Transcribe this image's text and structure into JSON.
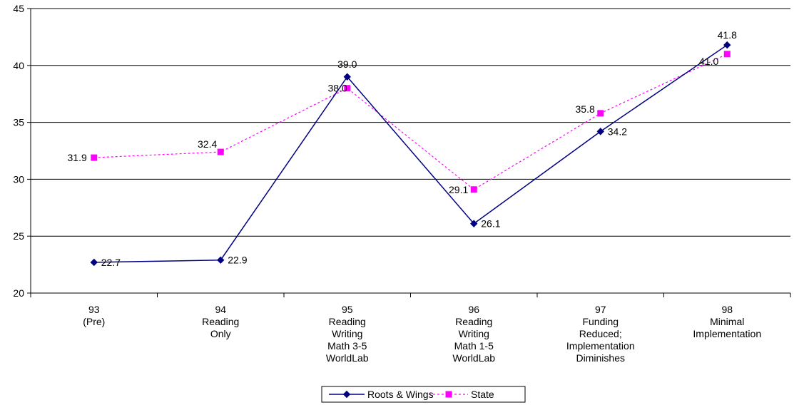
{
  "chart_data": {
    "type": "line",
    "title": "",
    "xlabel": "",
    "ylabel": "",
    "ylim": [
      20,
      45
    ],
    "yticks": [
      20,
      25,
      30,
      35,
      40,
      45
    ],
    "grid": true,
    "legend_position": "bottom",
    "categories": [
      [
        "93",
        "(Pre)"
      ],
      [
        "94",
        "Reading",
        "Only"
      ],
      [
        "95",
        "Reading",
        "Writing",
        "Math 3-5",
        "WorldLab"
      ],
      [
        "96",
        "Reading",
        "Writing",
        "Math 1-5",
        "WorldLab"
      ],
      [
        "97",
        "Funding",
        "Reduced;",
        "Implementation",
        "Diminishes"
      ],
      [
        "98",
        "Minimal",
        "Implementation"
      ]
    ],
    "series": [
      {
        "name": "Roots & Wings",
        "values": [
          22.7,
          22.9,
          39.0,
          26.1,
          34.2,
          41.8
        ],
        "labels": [
          "22.7",
          "22.9",
          "39.0",
          "26.1",
          "34.2",
          "41.8"
        ],
        "color": "#000080",
        "marker": "diamond",
        "line_style": "solid"
      },
      {
        "name": "State",
        "values": [
          31.9,
          32.4,
          38.0,
          29.1,
          35.8,
          41.0
        ],
        "labels": [
          "31.9",
          "32.4",
          "38.0",
          "29.1",
          "35.8",
          "41.0"
        ],
        "color": "#ff00ff",
        "marker": "square",
        "line_style": "dotted"
      }
    ]
  }
}
